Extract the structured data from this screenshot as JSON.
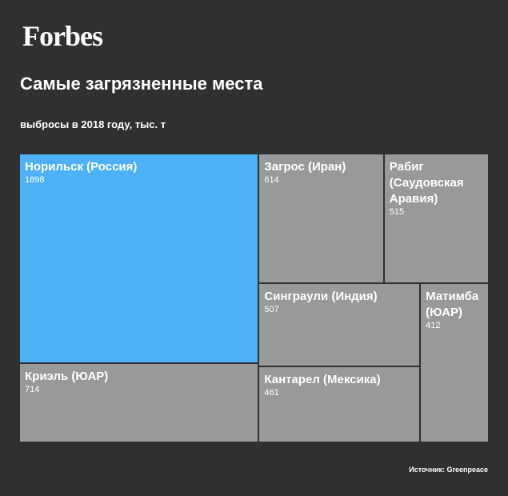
{
  "brand": "Forbes",
  "title": "Самые загрязненные места",
  "subtitle": "выбросы в 2018 году, тыс. т",
  "source": "Источник: Greenpeace",
  "colors": {
    "background": "#303030",
    "tile": "#999999",
    "highlight": "#4cb1f6",
    "text": "#ffffff"
  },
  "chart_data": {
    "type": "treemap",
    "title": "Самые загрязненные места",
    "subtitle": "выбросы в 2018 году, тыс. т",
    "unit": "тыс. т",
    "items": [
      {
        "name": "Норильск (Россия)",
        "value": 1898,
        "highlight": true
      },
      {
        "name": "Криэль (ЮАР)",
        "value": 714,
        "highlight": false
      },
      {
        "name": "Загрос (Иран)",
        "value": 614,
        "highlight": false
      },
      {
        "name": "Рабиг (Саудовская Аравия)",
        "value": 515,
        "highlight": false
      },
      {
        "name": "Синграули (Индия)",
        "value": 507,
        "highlight": false
      },
      {
        "name": "Кантарел (Мексика)",
        "value": 461,
        "highlight": false
      },
      {
        "name": "Матимба (ЮАР)",
        "value": 412,
        "highlight": false
      }
    ]
  }
}
